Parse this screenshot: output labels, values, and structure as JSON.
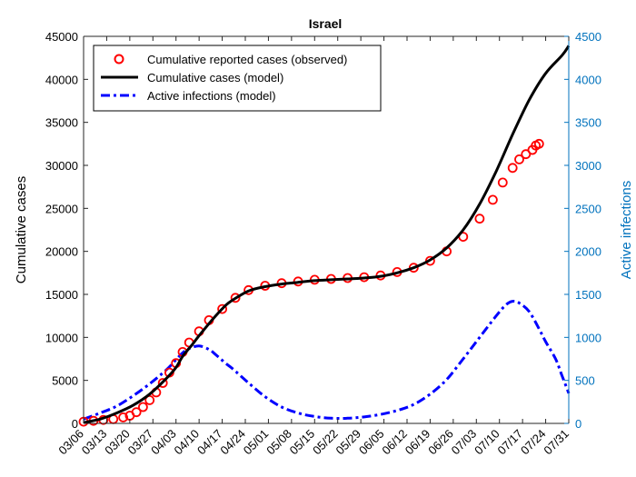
{
  "chart_data": {
    "type": "line",
    "title": "Israel",
    "xlabel": "",
    "ylabel_left": "Cumulative cases",
    "ylabel_right": "Active infections",
    "ylim_left": [
      0,
      45000
    ],
    "ylim_right": [
      0,
      4500
    ],
    "yticks_left": [
      0,
      5000,
      10000,
      15000,
      20000,
      25000,
      30000,
      35000,
      40000,
      45000
    ],
    "yticks_right": [
      0,
      500,
      1000,
      1500,
      2000,
      2500,
      3000,
      3500,
      4000,
      4500
    ],
    "xlim_days": [
      0,
      147
    ],
    "x_unit": "days since 03/06",
    "xtick_labels": [
      "03/06",
      "03/13",
      "03/20",
      "03/27",
      "04/03",
      "04/10",
      "04/17",
      "04/24",
      "05/01",
      "05/08",
      "05/15",
      "05/22",
      "05/29",
      "06/05",
      "06/12",
      "06/19",
      "06/26",
      "07/03",
      "07/10",
      "07/17",
      "07/24",
      "07/31"
    ],
    "legend_position": "top-left",
    "legend": [
      {
        "label": "Cumulative reported cases (observed)",
        "style": "circle"
      },
      {
        "label": "Cumulative cases (model)",
        "style": "line"
      },
      {
        "label": "Active infections (model)",
        "style": "dash"
      }
    ],
    "colors": {
      "observed": "#ff0000",
      "model": "#000000",
      "active": "#0000ff",
      "right_axis": "#0072bd"
    },
    "series": [
      {
        "name": "Cumulative reported cases (observed)",
        "axis": "left",
        "style": "markers",
        "x": [
          0,
          3,
          6,
          9,
          12,
          14,
          16,
          18,
          20,
          22,
          24,
          26,
          28,
          30,
          32,
          35,
          38,
          42,
          46,
          50,
          55,
          60,
          65,
          70,
          75,
          80,
          85,
          90,
          95,
          100,
          105,
          110,
          115,
          120,
          124,
          127,
          130,
          132,
          134,
          136,
          137,
          138
        ],
        "y": [
          200,
          300,
          400,
          500,
          700,
          900,
          1300,
          1900,
          2700,
          3600,
          4700,
          5900,
          7000,
          8300,
          9400,
          10700,
          12000,
          13300,
          14600,
          15500,
          16000,
          16300,
          16500,
          16700,
          16800,
          16900,
          17000,
          17200,
          17600,
          18100,
          18900,
          20000,
          21700,
          23800,
          26000,
          28000,
          29700,
          30700,
          31300,
          31800,
          32300,
          32500
        ]
      },
      {
        "name": "Cumulative cases (model)",
        "axis": "left",
        "style": "line",
        "x": [
          0,
          5,
          10,
          15,
          20,
          25,
          28,
          30,
          33,
          35,
          38,
          40,
          43,
          45,
          50,
          55,
          60,
          65,
          70,
          75,
          80,
          85,
          90,
          95,
          100,
          105,
          110,
          115,
          120,
          125,
          130,
          135,
          140,
          145,
          147
        ],
        "y": [
          100,
          500,
          1200,
          2100,
          3400,
          5200,
          6500,
          7800,
          9200,
          10200,
          11600,
          12500,
          13700,
          14300,
          15400,
          15900,
          16200,
          16400,
          16600,
          16700,
          16800,
          16900,
          17100,
          17500,
          18100,
          19000,
          20400,
          22500,
          25500,
          29300,
          33600,
          37600,
          40700,
          42800,
          43900
        ]
      },
      {
        "name": "Active infections (model)",
        "axis": "right",
        "style": "dash",
        "x": [
          0,
          5,
          10,
          15,
          20,
          25,
          28,
          30,
          32,
          35,
          38,
          40,
          43,
          45,
          50,
          55,
          60,
          65,
          70,
          75,
          80,
          85,
          90,
          95,
          100,
          105,
          110,
          115,
          120,
          125,
          128,
          130,
          132,
          135,
          138,
          140,
          143,
          145,
          147
        ],
        "y": [
          50,
          120,
          200,
          320,
          460,
          620,
          740,
          820,
          870,
          900,
          860,
          800,
          700,
          640,
          470,
          310,
          190,
          120,
          80,
          60,
          60,
          75,
          105,
          150,
          220,
          340,
          510,
          750,
          1000,
          1250,
          1380,
          1420,
          1400,
          1300,
          1100,
          950,
          750,
          550,
          350
        ]
      }
    ]
  }
}
